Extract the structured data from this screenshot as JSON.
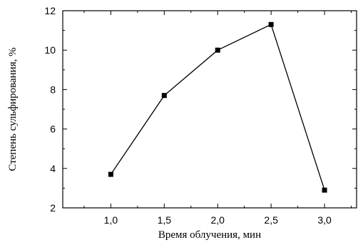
{
  "chart_data": {
    "type": "line",
    "title": "",
    "xlabel": "Время облучения, мин",
    "ylabel": "Степень сульфирования, %",
    "x": [
      1.0,
      1.5,
      2.0,
      2.5,
      3.0
    ],
    "y": [
      3.7,
      7.7,
      10.0,
      11.3,
      2.9
    ],
    "xlim": [
      0.55,
      3.3
    ],
    "ylim": [
      2,
      12
    ],
    "x_ticks": [
      1.0,
      1.5,
      2.0,
      2.5,
      3.0
    ],
    "x_tick_labels": [
      "1,0",
      "1,5",
      "2,0",
      "2,5",
      "3,0"
    ],
    "y_ticks": [
      2,
      4,
      6,
      8,
      10,
      12
    ],
    "y_tick_labels": [
      "2",
      "4",
      "6",
      "8",
      "10",
      "12"
    ],
    "marker": "square",
    "grid": false,
    "colors": {
      "line": "#000000",
      "marker": "#000000",
      "axis": "#000000"
    }
  }
}
